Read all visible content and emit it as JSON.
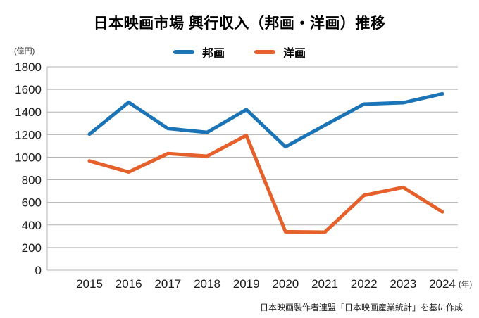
{
  "source_note": "日本映画製作者連盟「日本映画産業統計」を基に作成",
  "colors": {
    "houga_blue": "#1b74b5",
    "youga_orange": "#e5602b",
    "grid": "#b3b3b3",
    "tick_text": "#1a1a1a"
  },
  "chart_data": {
    "type": "line",
    "title": "日本映画市場 興行収入（邦画・洋画）推移",
    "categories": [
      "2015",
      "2016",
      "2017",
      "2018",
      "2019",
      "2020",
      "2021",
      "2022",
      "2023",
      "2024"
    ],
    "series": [
      {
        "name": "邦画",
        "color": "#1b74b5",
        "values": [
          1204,
          1486,
          1254,
          1220,
          1421,
          1092,
          1283,
          1470,
          1482,
          1561
        ]
      },
      {
        "name": "洋画",
        "color": "#e5602b",
        "values": [
          967,
          869,
          1032,
          1009,
          1193,
          340,
          336,
          662,
          733,
          516
        ]
      }
    ],
    "ylabel": "(億円)",
    "xlabel": "(年)",
    "ylim": [
      0,
      1800
    ],
    "ytick_step": 200,
    "grid": true,
    "legend_position": "top"
  }
}
